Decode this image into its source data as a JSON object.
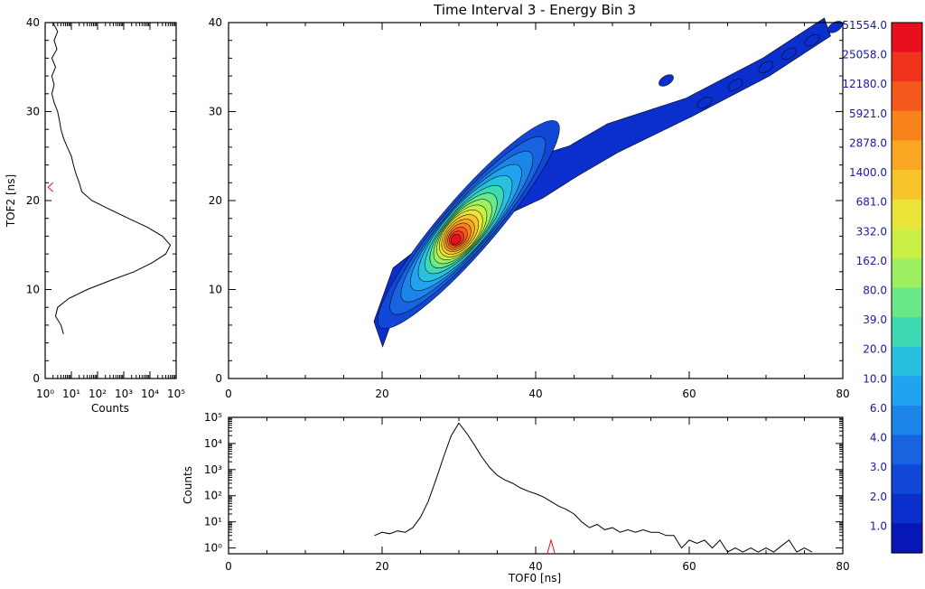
{
  "title": "Time Interval 3 -   Energy Bin 3",
  "left_panel": {
    "ylabel": "TOF2 [ns]",
    "xlabel": "Counts",
    "yticks": [
      "0",
      "10",
      "20",
      "30",
      "40"
    ],
    "xticks": [
      "10⁰",
      "10¹",
      "10²",
      "10³",
      "10⁴",
      "10⁵"
    ]
  },
  "main_panel": {
    "yticks": [
      "0",
      "10",
      "20",
      "30",
      "40"
    ],
    "xticks": [
      "0",
      "20",
      "40",
      "60",
      "80"
    ]
  },
  "bottom_panel": {
    "ylabel": "Counts",
    "xlabel": "TOF0 [ns]",
    "yticks": [
      "10⁰",
      "10¹",
      "10²",
      "10³",
      "10⁴",
      "10⁵"
    ],
    "xticks": [
      "0",
      "20",
      "40",
      "60",
      "80"
    ]
  },
  "colorbar": {
    "labels": [
      "51554.0",
      "25058.0",
      "12180.0",
      "5921.0",
      "2878.0",
      "1400.0",
      "681.0",
      "332.0",
      "162.0",
      "80.0",
      "39.0",
      "20.0",
      "10.0",
      "6.0",
      "4.0",
      "3.0",
      "2.0",
      "1.0"
    ],
    "colors": [
      "#e8101c",
      "#f0331c",
      "#f55a1c",
      "#f8821c",
      "#f9a623",
      "#f7c52b",
      "#eae338",
      "#c9ef45",
      "#9cf061",
      "#6be889",
      "#3fd9b4",
      "#28c0de",
      "#22a3f0",
      "#1d84ea",
      "#1763e0",
      "#1147d6",
      "#0b2fcc",
      "#0717b8"
    ]
  },
  "chart_data": [
    {
      "type": "heatmap",
      "panel": "main",
      "title": "Time Interval 3 -   Energy Bin 3",
      "xlabel": "",
      "ylabel": "",
      "xlim": [
        0,
        80
      ],
      "ylim": [
        0,
        40
      ],
      "peak": {
        "x": 30,
        "y": 15.5,
        "counts": 51554.0
      },
      "ridge": [
        {
          "x": 19.5,
          "y": 5.0,
          "counts": 2.0
        },
        {
          "x": 22,
          "y": 11.0,
          "counts": 6.0
        },
        {
          "x": 25,
          "y": 13.0,
          "counts": 39.0
        },
        {
          "x": 28,
          "y": 14.8,
          "counts": 1400.0
        },
        {
          "x": 30,
          "y": 15.5,
          "counts": 51554.0
        },
        {
          "x": 32,
          "y": 18.0,
          "counts": 681.0
        },
        {
          "x": 35,
          "y": 20.5,
          "counts": 80.0
        },
        {
          "x": 40,
          "y": 22.5,
          "counts": 20.0
        },
        {
          "x": 45,
          "y": 24.5,
          "counts": 6.0
        },
        {
          "x": 50,
          "y": 27.0,
          "counts": 3.0
        },
        {
          "x": 60,
          "y": 30.5,
          "counts": 1.0
        },
        {
          "x": 70,
          "y": 35.0,
          "counts": 1.0
        },
        {
          "x": 78,
          "y": 39.5,
          "counts": 1.0
        }
      ]
    },
    {
      "type": "line",
      "panel": "left",
      "xlabel": "Counts",
      "ylabel": "TOF2 [ns]",
      "xscale": "log",
      "xlim": [
        1,
        100000
      ],
      "ylim": [
        0,
        40
      ],
      "series": [
        {
          "color": "#000000",
          "points": [
            [
              5,
              5
            ],
            [
              4,
              6
            ],
            [
              2.5,
              7
            ],
            [
              3,
              8
            ],
            [
              8,
              9
            ],
            [
              40,
              10
            ],
            [
              300,
              11
            ],
            [
              2500,
              12
            ],
            [
              12000,
              13
            ],
            [
              40000,
              14
            ],
            [
              60000,
              15
            ],
            [
              30000,
              16
            ],
            [
              8000,
              17
            ],
            [
              1500,
              18
            ],
            [
              300,
              19
            ],
            [
              60,
              20
            ],
            [
              25,
              21
            ],
            [
              20,
              22
            ],
            [
              15,
              23
            ],
            [
              12,
              24
            ],
            [
              10,
              25
            ],
            [
              7,
              26
            ],
            [
              5,
              27
            ],
            [
              4,
              28
            ],
            [
              3.5,
              29
            ],
            [
              3,
              30
            ],
            [
              2.2,
              31
            ],
            [
              1.8,
              32
            ],
            [
              2.2,
              33
            ],
            [
              1.8,
              34
            ],
            [
              2.5,
              35
            ],
            [
              1.8,
              36
            ],
            [
              2.8,
              37
            ],
            [
              2.2,
              38
            ],
            [
              3,
              39
            ],
            [
              2,
              40
            ]
          ]
        },
        {
          "color": "#e8101c",
          "points": [
            [
              2,
              21
            ],
            [
              1.3,
              21.5
            ],
            [
              2,
              22
            ]
          ]
        }
      ]
    },
    {
      "type": "line",
      "panel": "bottom",
      "xlabel": "TOF0 [ns]",
      "ylabel": "Counts",
      "yscale": "log",
      "xlim": [
        0,
        80
      ],
      "ylim": [
        0.6,
        100000
      ],
      "series": [
        {
          "color": "#000000",
          "points": [
            [
              19,
              3
            ],
            [
              20,
              4
            ],
            [
              21,
              3.5
            ],
            [
              22,
              4.5
            ],
            [
              23,
              4
            ],
            [
              24,
              6
            ],
            [
              25,
              15
            ],
            [
              26,
              60
            ],
            [
              27,
              400
            ],
            [
              28,
              3000
            ],
            [
              29,
              20000
            ],
            [
              30,
              60000
            ],
            [
              31,
              25000
            ],
            [
              32,
              9000
            ],
            [
              33,
              3000
            ],
            [
              34,
              1200
            ],
            [
              35,
              600
            ],
            [
              36,
              400
            ],
            [
              37,
              300
            ],
            [
              38,
              200
            ],
            [
              39,
              150
            ],
            [
              40,
              120
            ],
            [
              41,
              90
            ],
            [
              42,
              60
            ],
            [
              43,
              40
            ],
            [
              44,
              30
            ],
            [
              45,
              20
            ],
            [
              46,
              10
            ],
            [
              47,
              6
            ],
            [
              48,
              8
            ],
            [
              49,
              5
            ],
            [
              50,
              6
            ],
            [
              51,
              4
            ],
            [
              52,
              5
            ],
            [
              53,
              4
            ],
            [
              54,
              5
            ],
            [
              55,
              4
            ],
            [
              56,
              4
            ],
            [
              57,
              3
            ],
            [
              58,
              3
            ],
            [
              59,
              1
            ],
            [
              60,
              2
            ],
            [
              61,
              1.5
            ],
            [
              62,
              2
            ],
            [
              63,
              1
            ],
            [
              64,
              2
            ],
            [
              65,
              0.7
            ],
            [
              66,
              1
            ],
            [
              67,
              0.7
            ],
            [
              68,
              1
            ],
            [
              69,
              0.7
            ],
            [
              70,
              1
            ],
            [
              71,
              0.7
            ],
            [
              72,
              1.2
            ],
            [
              73,
              2
            ],
            [
              74,
              0.7
            ],
            [
              75,
              1
            ],
            [
              76,
              0.7
            ]
          ]
        },
        {
          "color": "#e8101c",
          "points": [
            [
              41.5,
              0.6
            ],
            [
              42,
              2
            ],
            [
              42.5,
              0.6
            ]
          ]
        }
      ]
    }
  ]
}
